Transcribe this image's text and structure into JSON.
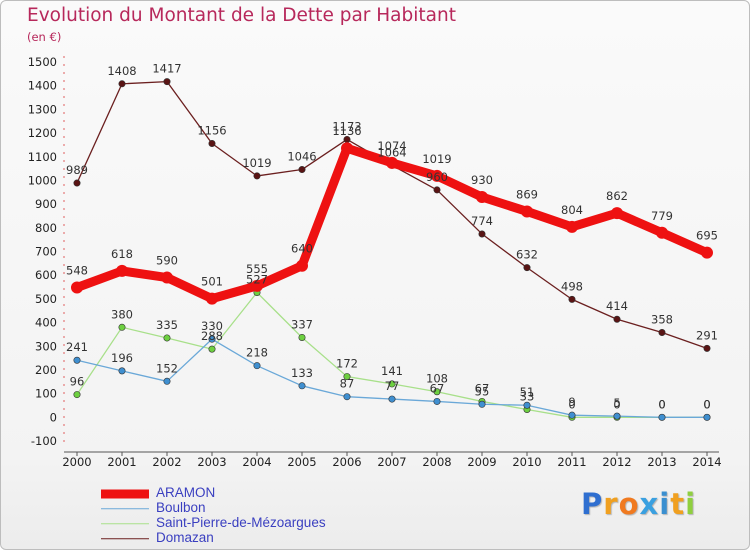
{
  "chart_data": {
    "type": "line",
    "title": "Evolution du Montant de la Dette par Habitant",
    "subtitle": "(en €)",
    "x": [
      "2000",
      "2001",
      "2002",
      "2003",
      "2004",
      "2005",
      "2006",
      "2007",
      "2008",
      "2009",
      "2010",
      "2011",
      "2012",
      "2013",
      "2014"
    ],
    "ylim": [
      -100,
      1500
    ],
    "yticks": [
      -100,
      0,
      100,
      200,
      300,
      400,
      500,
      600,
      700,
      800,
      900,
      1000,
      1100,
      1200,
      1300,
      1400,
      1500
    ],
    "grid": false,
    "legend_position": "bottom-left",
    "series": [
      {
        "name": "Domazan",
        "color": "#6b1f1f",
        "point_color": "#5a1414",
        "values": [
          989,
          1408,
          1417,
          1156,
          1019,
          1046,
          1173,
          1064,
          960,
          774,
          632,
          498,
          414,
          358,
          291
        ],
        "labels": [
          "989",
          "1408",
          "1417",
          "1156",
          "1019",
          "1046",
          "1173",
          "1064",
          "960",
          "774",
          "632",
          "498",
          "414",
          "358",
          "291"
        ]
      },
      {
        "name": "Saint-Pierre-de-Mézoargues",
        "color": "#a8e08a",
        "point_color": "#6dd040",
        "values": [
          96,
          380,
          335,
          288,
          527,
          337,
          172,
          141,
          108,
          67,
          33,
          0,
          0,
          0,
          0
        ],
        "labels": [
          "96",
          "380",
          "335",
          "288",
          "527",
          "337",
          "172",
          "141",
          "108",
          "67",
          "33",
          "0",
          "0",
          "0",
          "0"
        ]
      },
      {
        "name": "Boulbon",
        "color": "#6aa8d8",
        "point_color": "#3f8fd0",
        "values": [
          241,
          196,
          152,
          330,
          218,
          133,
          87,
          77,
          67,
          55,
          51,
          9,
          5,
          0,
          0
        ],
        "labels": [
          "241",
          "196",
          "152",
          "330",
          "218",
          "133",
          "87",
          "77",
          "67",
          "55",
          "51",
          "9",
          "5",
          "0",
          "0"
        ]
      },
      {
        "name": "ARAMON",
        "color": "#ee1111",
        "point_color": "#ee1111",
        "values": [
          548,
          618,
          590,
          501,
          555,
          640,
          1136,
          1074,
          1019,
          930,
          869,
          804,
          862,
          779,
          695
        ],
        "labels": [
          "548",
          "618",
          "590",
          "501",
          "555",
          "640",
          "1136",
          "1074",
          "1019",
          "930",
          "869",
          "804",
          "862",
          "779",
          "695"
        ]
      }
    ]
  },
  "legend": [
    {
      "name": "ARAMON",
      "color": "#ee1111",
      "style": "thick"
    },
    {
      "name": "Boulbon",
      "color": "#6aa8d8",
      "style": "thin"
    },
    {
      "name": "Saint-Pierre-de-Mézoargues",
      "color": "#a8e08a",
      "style": "thin"
    },
    {
      "name": "Domazan",
      "color": "#6b1f1f",
      "style": "thin"
    }
  ],
  "logo": {
    "text": "Proxiti",
    "letters": [
      {
        "ch": "P",
        "color": "#2f6fd0"
      },
      {
        "ch": "r",
        "color": "#f0a020"
      },
      {
        "ch": "o",
        "color": "#f07a20"
      },
      {
        "ch": "x",
        "color": "#3aa0e0"
      },
      {
        "ch": "i",
        "color": "#3a8fd0"
      },
      {
        "ch": "t",
        "color": "#f0a020"
      },
      {
        "ch": "i",
        "color": "#8fcf3f"
      }
    ]
  }
}
